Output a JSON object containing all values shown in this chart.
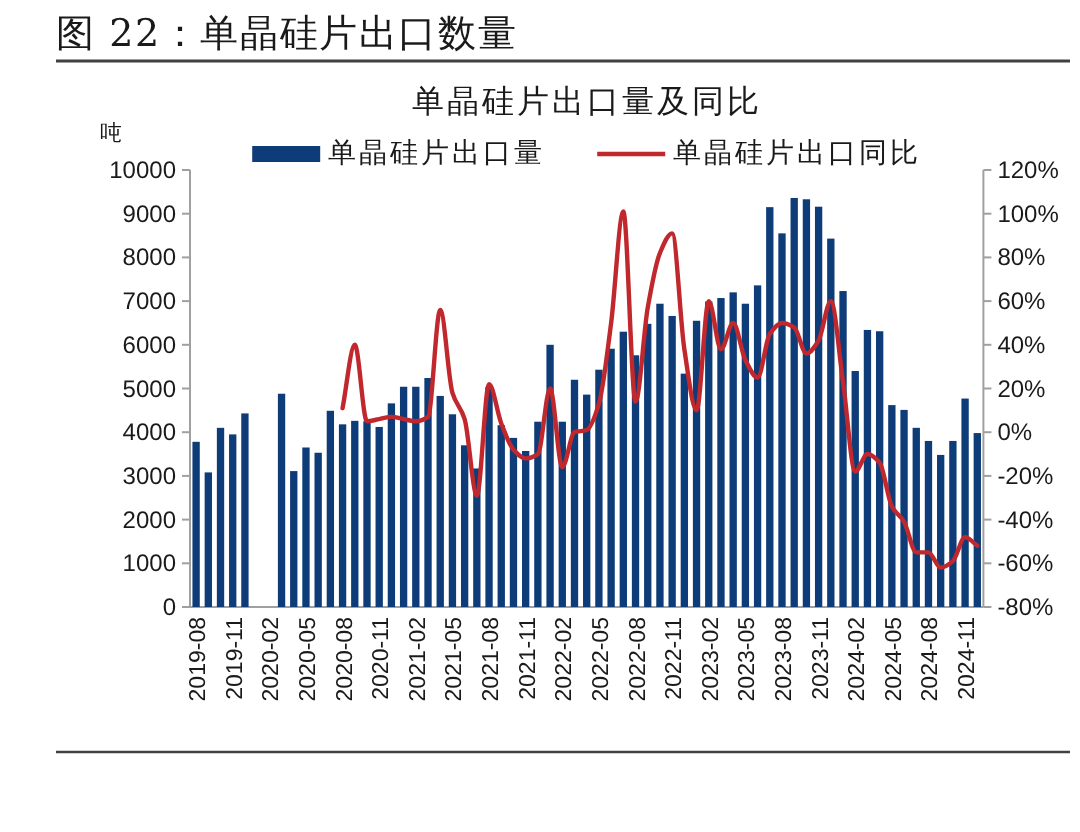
{
  "chart_data": {
    "type": "bar",
    "title": "图 22：单晶硅片出口数量",
    "subtitle": "单晶硅片出口量及同比",
    "ylabel": "吨",
    "categories": [
      "2019-08",
      null,
      null,
      "2019-11",
      null,
      null,
      "2020-02",
      null,
      null,
      "2020-05",
      null,
      null,
      "2020-08",
      null,
      null,
      "2020-11",
      null,
      null,
      "2021-02",
      null,
      null,
      "2021-05",
      null,
      null,
      "2021-08",
      null,
      null,
      "2021-11",
      null,
      null,
      "2022-02",
      null,
      null,
      "2022-05",
      null,
      null,
      "2022-08",
      null,
      null,
      "2022-11",
      null,
      null,
      "2023-02",
      null,
      null,
      "2023-05",
      null,
      null,
      "2023-08",
      null,
      null,
      "2023-11",
      null,
      null,
      "2024-02",
      null,
      null,
      "2024-05",
      null,
      null,
      "2024-08",
      null,
      null,
      "2024-11",
      null
    ],
    "series": [
      {
        "name": "单晶硅片出口量",
        "color": "#0e3c78",
        "values": [
          3780,
          3080,
          4100,
          3950,
          4430,
          null,
          null,
          4880,
          3110,
          3650,
          3530,
          4490,
          4180,
          4260,
          4250,
          4120,
          4660,
          5040,
          5040,
          5240,
          4830,
          4410,
          3700,
          3170,
          5030,
          4160,
          3870,
          3570,
          4240,
          6000,
          4240,
          5200,
          4860,
          5430,
          5910,
          6300,
          5760,
          6480,
          6940,
          6660,
          5340,
          6550,
          6990,
          7070,
          7200,
          6940,
          7360,
          9150,
          8550,
          9360,
          9330,
          9160,
          8430,
          7230,
          5400,
          6340,
          6310,
          4620,
          4510,
          4100,
          3800,
          3480,
          3800,
          4770,
          3980
        ]
      },
      {
        "name": "单晶硅片出口同比",
        "type": "line",
        "axis": "y2",
        "color": "#c0282d",
        "values": [
          null,
          null,
          null,
          null,
          null,
          null,
          null,
          null,
          null,
          null,
          null,
          null,
          11,
          40,
          5,
          6,
          7,
          6,
          5,
          7,
          56,
          18,
          6,
          -29,
          22,
          4,
          -8,
          -12,
          -10,
          20,
          -16,
          0,
          1,
          13,
          50,
          101,
          14,
          57,
          82,
          91,
          38,
          10,
          60,
          38,
          50,
          33,
          25,
          45,
          50,
          48,
          36,
          42,
          60,
          23,
          -18,
          -10,
          -14,
          -34,
          -41,
          -55,
          -55,
          -62,
          -59,
          -48,
          -52
        ]
      }
    ],
    "ylim": [
      0,
      10000
    ],
    "yticks": [
      0,
      1000,
      2000,
      3000,
      4000,
      5000,
      6000,
      7000,
      8000,
      9000,
      10000
    ],
    "y2lim": [
      -80,
      120
    ],
    "y2ticks": [
      {
        "value": -80,
        "label": "-80%"
      },
      {
        "value": -60,
        "label": "-60%"
      },
      {
        "value": -40,
        "label": "-40%"
      },
      {
        "value": -20,
        "label": "-20%"
      },
      {
        "value": 0,
        "label": "0%"
      },
      {
        "value": 20,
        "label": "20%"
      },
      {
        "value": 40,
        "label": "40%"
      },
      {
        "value": 60,
        "label": "60%"
      },
      {
        "value": 80,
        "label": "80%"
      },
      {
        "value": 100,
        "label": "100%"
      },
      {
        "value": 120,
        "label": "120%"
      }
    ],
    "legend": "top"
  }
}
